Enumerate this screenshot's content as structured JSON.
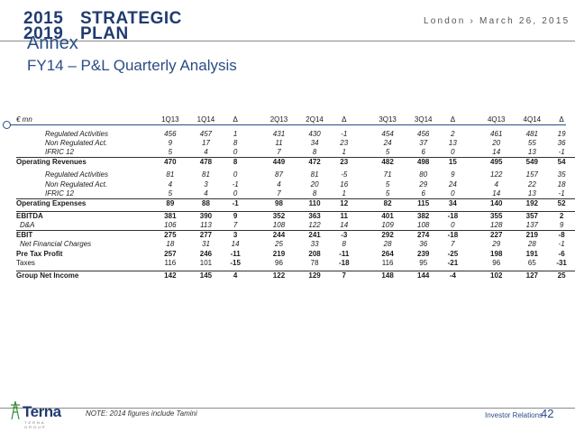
{
  "header": {
    "year_top": "2015",
    "word_top": "STRATEGIC",
    "year_bottom": "2019",
    "word_bottom": "PLAN",
    "tagline": "London › March 26, 2015"
  },
  "title": "Annex",
  "subtitle": "FY14 – P&L Quarterly Analysis",
  "table": {
    "currency": "€ mn",
    "headers": [
      "1Q13",
      "1Q14",
      "Δ",
      "2Q13",
      "2Q14",
      "Δ",
      "3Q13",
      "3Q14",
      "Δ",
      "4Q13",
      "4Q14",
      "Δ"
    ],
    "rows": [
      {
        "label": "Regulated Activities",
        "values": [
          "456",
          "457",
          "1",
          "431",
          "430",
          "-1",
          "454",
          "456",
          "2",
          "461",
          "481",
          "19"
        ]
      },
      {
        "label": "Non Regulated Act.",
        "values": [
          "9",
          "17",
          "8",
          "11",
          "34",
          "23",
          "24",
          "37",
          "13",
          "20",
          "55",
          "36"
        ]
      },
      {
        "label": "IFRIC 12",
        "values": [
          "5",
          "4",
          "0",
          "7",
          "8",
          "1",
          "5",
          "6",
          "0",
          "14",
          "13",
          "-1"
        ]
      },
      {
        "label": "Operating Revenues",
        "values": [
          "470",
          "478",
          "8",
          "449",
          "472",
          "23",
          "482",
          "498",
          "15",
          "495",
          "549",
          "54"
        ]
      },
      {
        "label": "Regulated Activities",
        "values": [
          "81",
          "81",
          "0",
          "87",
          "81",
          "-5",
          "71",
          "80",
          "9",
          "122",
          "157",
          "35"
        ]
      },
      {
        "label": "Non Regulated Act.",
        "values": [
          "4",
          "3",
          "-1",
          "4",
          "20",
          "16",
          "5",
          "29",
          "24",
          "4",
          "22",
          "18"
        ]
      },
      {
        "label": "IFRIC 12",
        "values": [
          "5",
          "4",
          "0",
          "7",
          "8",
          "1",
          "5",
          "6",
          "0",
          "14",
          "13",
          "-1"
        ]
      },
      {
        "label": "Operating Expenses",
        "values": [
          "89",
          "88",
          "-1",
          "98",
          "110",
          "12",
          "82",
          "115",
          "34",
          "140",
          "192",
          "52"
        ]
      },
      {
        "label": "EBITDA",
        "values": [
          "381",
          "390",
          "9",
          "352",
          "363",
          "11",
          "401",
          "382",
          "-18",
          "355",
          "357",
          "2"
        ]
      },
      {
        "label": "D&A",
        "values": [
          "106",
          "113",
          "7",
          "108",
          "122",
          "14",
          "109",
          "108",
          "0",
          "128",
          "137",
          "9"
        ]
      },
      {
        "label": "EBIT",
        "values": [
          "275",
          "277",
          "3",
          "244",
          "241",
          "-3",
          "292",
          "274",
          "-18",
          "227",
          "219",
          "-8"
        ]
      },
      {
        "label": "Net Financial Charges",
        "values": [
          "18",
          "31",
          "14",
          "25",
          "33",
          "8",
          "28",
          "36",
          "7",
          "29",
          "28",
          "-1"
        ]
      },
      {
        "label": "Pre Tax Profit",
        "values": [
          "257",
          "246",
          "-11",
          "219",
          "208",
          "-11",
          "264",
          "239",
          "-25",
          "198",
          "191",
          "-6"
        ]
      },
      {
        "label": "Taxes",
        "values": [
          "116",
          "101",
          "-15",
          "96",
          "78",
          "-18",
          "116",
          "95",
          "-21",
          "96",
          "65",
          "-31"
        ]
      },
      {
        "label": "Group Net Income",
        "values": [
          "142",
          "145",
          "4",
          "122",
          "129",
          "7",
          "148",
          "144",
          "-4",
          "102",
          "127",
          "25"
        ]
      }
    ]
  },
  "footer": {
    "logo_word": "Terna",
    "logo_small": "TERNA GROUP",
    "note": "NOTE: 2014 figures include Tamini",
    "investor_relations": "Investor Relations",
    "page_number": "42"
  }
}
